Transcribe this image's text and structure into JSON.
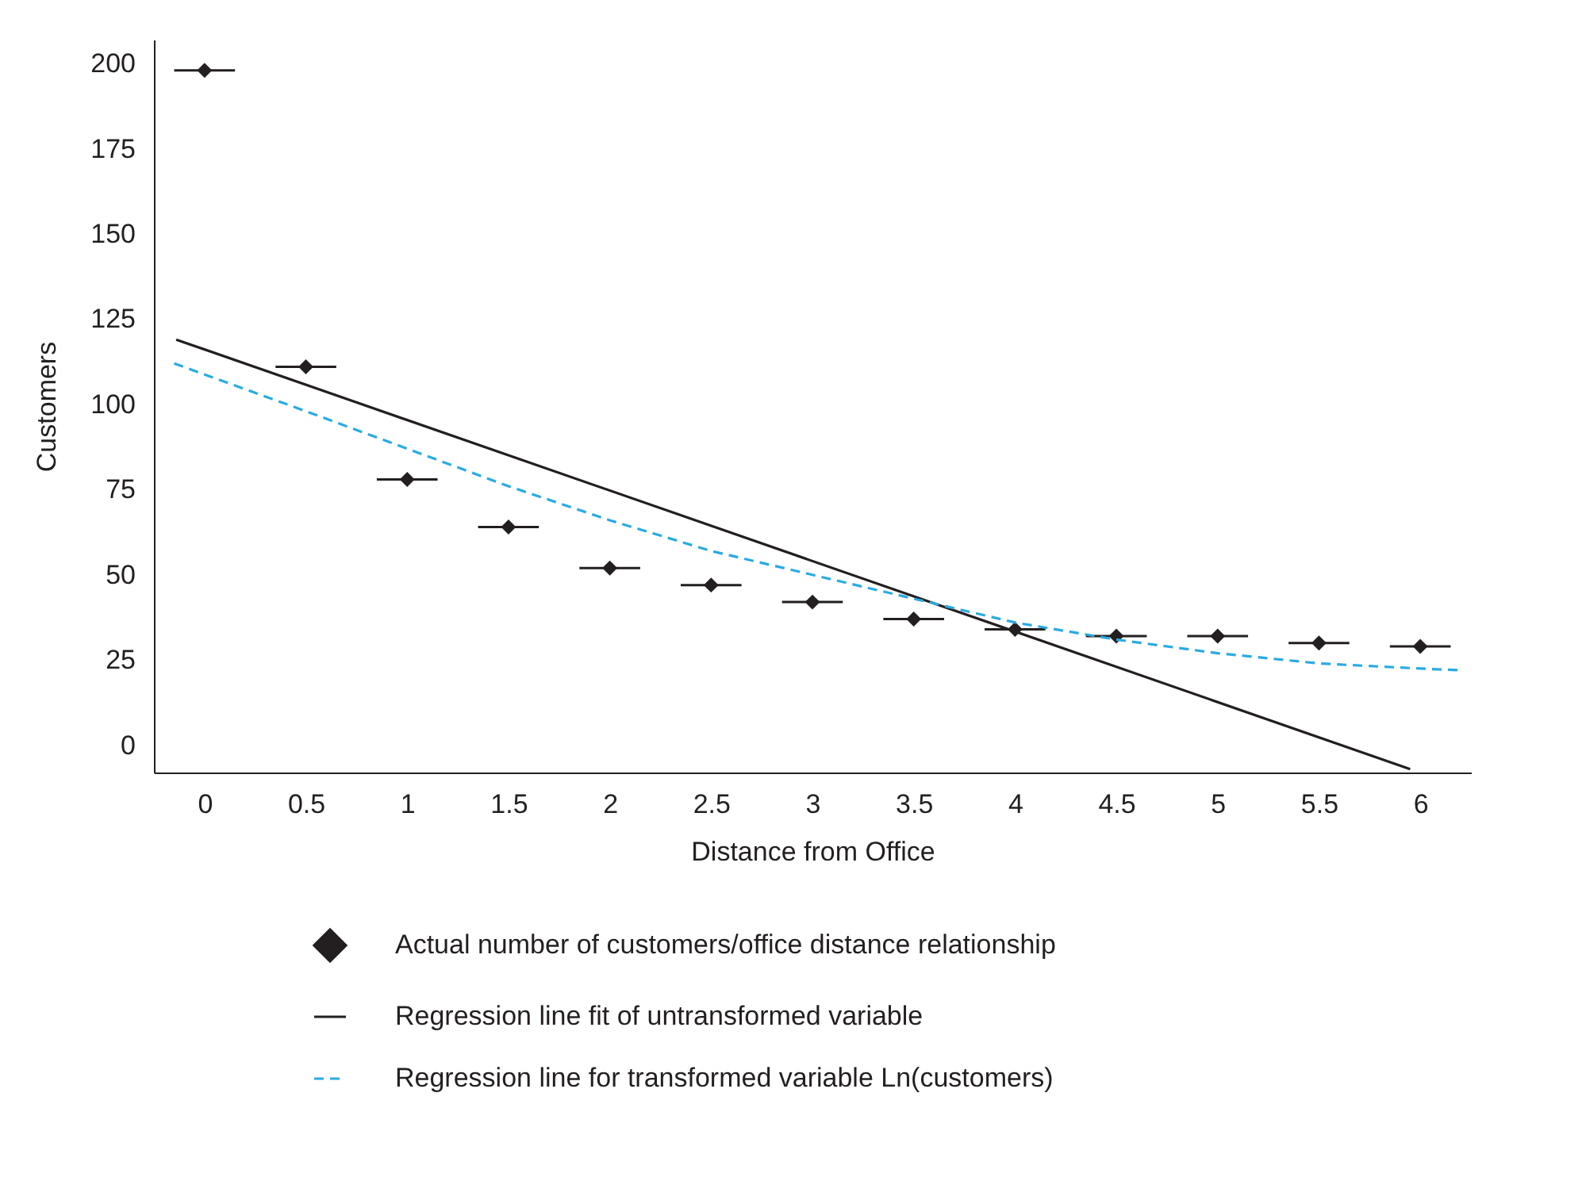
{
  "chart_data": {
    "type": "scatter",
    "xlabel": "Distance from Office",
    "ylabel": "Customers",
    "xlim": [
      -0.25,
      6.25
    ],
    "xticks": [
      0,
      0.5,
      1,
      1.5,
      2,
      2.5,
      3,
      3.5,
      4,
      4.5,
      5,
      5.5,
      6
    ],
    "ylim": [
      -8,
      207
    ],
    "yticks": [
      0,
      25,
      50,
      75,
      100,
      125,
      150,
      175,
      200
    ],
    "grid": false,
    "legend": "bottom",
    "series": [
      {
        "name": "Actual number of customers/office distance relationship",
        "marker": "diamond",
        "color": "#231f20",
        "x": [
          0,
          0.5,
          1,
          1.5,
          2,
          2.5,
          3,
          3.5,
          4,
          4.5,
          5,
          5.5,
          6
        ],
        "values": [
          198,
          111,
          78,
          64,
          52,
          47,
          42,
          37,
          34,
          32,
          32,
          30,
          29
        ],
        "xerrors": [
          0.15,
          0.15,
          0.15,
          0.15,
          0.15,
          0.15,
          0.15,
          0.15,
          0.15,
          0.15,
          0.15,
          0.15,
          0.15
        ]
      },
      {
        "name": "Regression line fit of untransformed variable",
        "type": "line",
        "line_style": "solid",
        "color": "#231f20",
        "x": [
          -0.14,
          5.95
        ],
        "values": [
          119,
          -7
        ]
      },
      {
        "name": "Regression line for transformed variable Ln(customers)",
        "type": "line",
        "line_style": "dashed",
        "color": "#29abe2",
        "x": [
          -0.15,
          0.5,
          1,
          1.5,
          2,
          2.5,
          3,
          3.5,
          4,
          4.5,
          5,
          5.5,
          6,
          6.2
        ],
        "values": [
          112,
          98,
          87,
          76,
          66,
          57,
          50,
          43,
          36,
          31,
          27,
          24,
          22.5,
          22
        ]
      }
    ]
  }
}
